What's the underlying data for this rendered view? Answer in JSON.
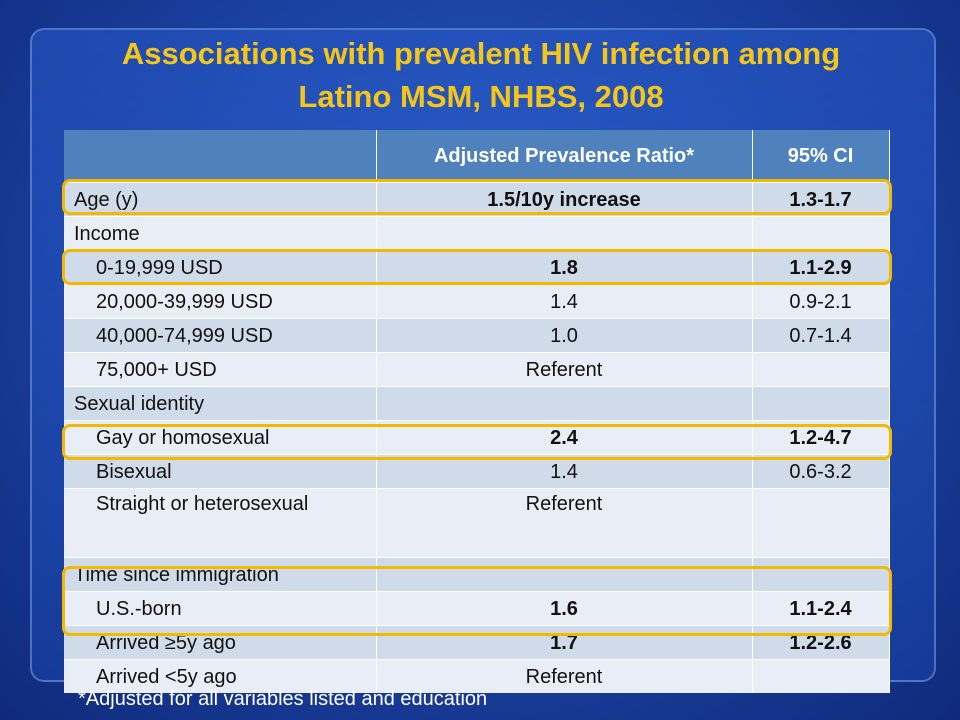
{
  "title": {
    "line1": "Associations with prevalent HIV infection among",
    "line2": "Latino MSM, NHBS, 2008"
  },
  "table": {
    "headers": [
      "",
      "Adjusted Prevalence Ratio*",
      "95% CI"
    ],
    "rows": [
      {
        "label": "Age (y)",
        "apr": "1.5/10y increase",
        "ci": "1.3-1.7"
      },
      {
        "label": "Income",
        "apr": "",
        "ci": ""
      },
      {
        "label": "0-19,999 USD",
        "apr": "1.8",
        "ci": "1.1-2.9"
      },
      {
        "label": "20,000-39,999 USD",
        "apr": "1.4",
        "ci": "0.9-2.1"
      },
      {
        "label": "40,000-74,999 USD",
        "apr": "1.0",
        "ci": "0.7-1.4"
      },
      {
        "label": "75,000+ USD",
        "apr": "Referent",
        "ci": ""
      },
      {
        "label": "Sexual identity",
        "apr": "",
        "ci": ""
      },
      {
        "label": "Gay or homosexual",
        "apr": "2.4",
        "ci": "1.2-4.7"
      },
      {
        "label": "Bisexual",
        "apr": "1.4",
        "ci": "0.6-3.2"
      },
      {
        "label": "Straight or heterosexual",
        "apr": "Referent",
        "ci": ""
      },
      {
        "label": "Time since immigration",
        "apr": "",
        "ci": ""
      },
      {
        "label": "U.S.-born",
        "apr": "1.6",
        "ci": "1.1-2.4"
      },
      {
        "label": "Arrived ≥5y ago",
        "apr": "1.7",
        "ci": "1.2-2.6"
      },
      {
        "label": "Arrived <5y ago",
        "apr": "Referent",
        "ci": ""
      }
    ]
  },
  "footnote": "*Adjusted for all variables listed and education",
  "colors": {
    "title": "#f5c518",
    "header_bg": "#4f81bd",
    "highlight": "#f5b800"
  }
}
